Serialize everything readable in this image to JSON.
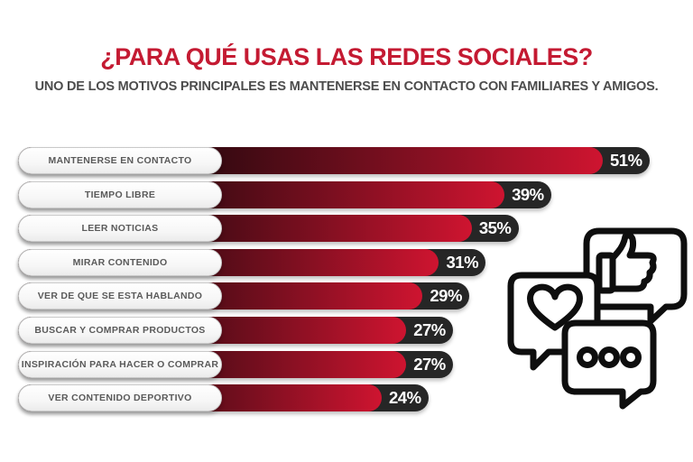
{
  "header": {
    "title": "¿PARA QUÉ USAS LAS REDES SOCIALES?",
    "subtitle": "UNO DE LOS MOTIVOS  PRINCIPALES ES MANTENERSE EN CONTACTO CON FAMILIARES Y AMIGOS."
  },
  "chart_data": {
    "type": "bar",
    "orientation": "horizontal",
    "title": "¿PARA QUÉ USAS LAS REDES SOCIALES?",
    "subtitle": "UNO DE LOS MOTIVOS  PRINCIPALES ES MANTENERSE EN CONTACTO CON FAMILIARES Y AMIGOS.",
    "categories": [
      "MANTENERSE EN CONTACTO",
      "TIEMPO LIBRE",
      "LEER NOTICIAS",
      "MIRAR CONTENIDO",
      "VER DE QUE SE ESTA HABLANDO",
      "BUSCAR Y COMPRAR PRODUCTOS",
      "INSPIRACIÓN PARA HACER O COMPRAR",
      "VER CONTENIDO DEPORTIVO"
    ],
    "values": [
      51,
      39,
      35,
      31,
      29,
      27,
      27,
      24
    ],
    "value_suffix": "%",
    "xlim": [
      0,
      55
    ],
    "grid": false,
    "legend": false,
    "colors": {
      "title_red": "#c41a32",
      "subtitle_gray": "#4c4c4c",
      "bar_gradient_start": "#1d0508",
      "bar_gradient_mid": "#7c0f20",
      "bar_gradient_end": "#ce1430",
      "value_capsule_dark": "#262626",
      "value_text": "#ffffff",
      "label_text": "#5a5a5a",
      "icon_stroke": "#0e0e0e"
    }
  },
  "icons": {
    "cluster_name": "social-chat-bubbles",
    "items": [
      "thumbs-up-chat-bubble-icon",
      "heart-chat-bubble-icon",
      "ellipsis-chat-bubble-icon"
    ]
  }
}
